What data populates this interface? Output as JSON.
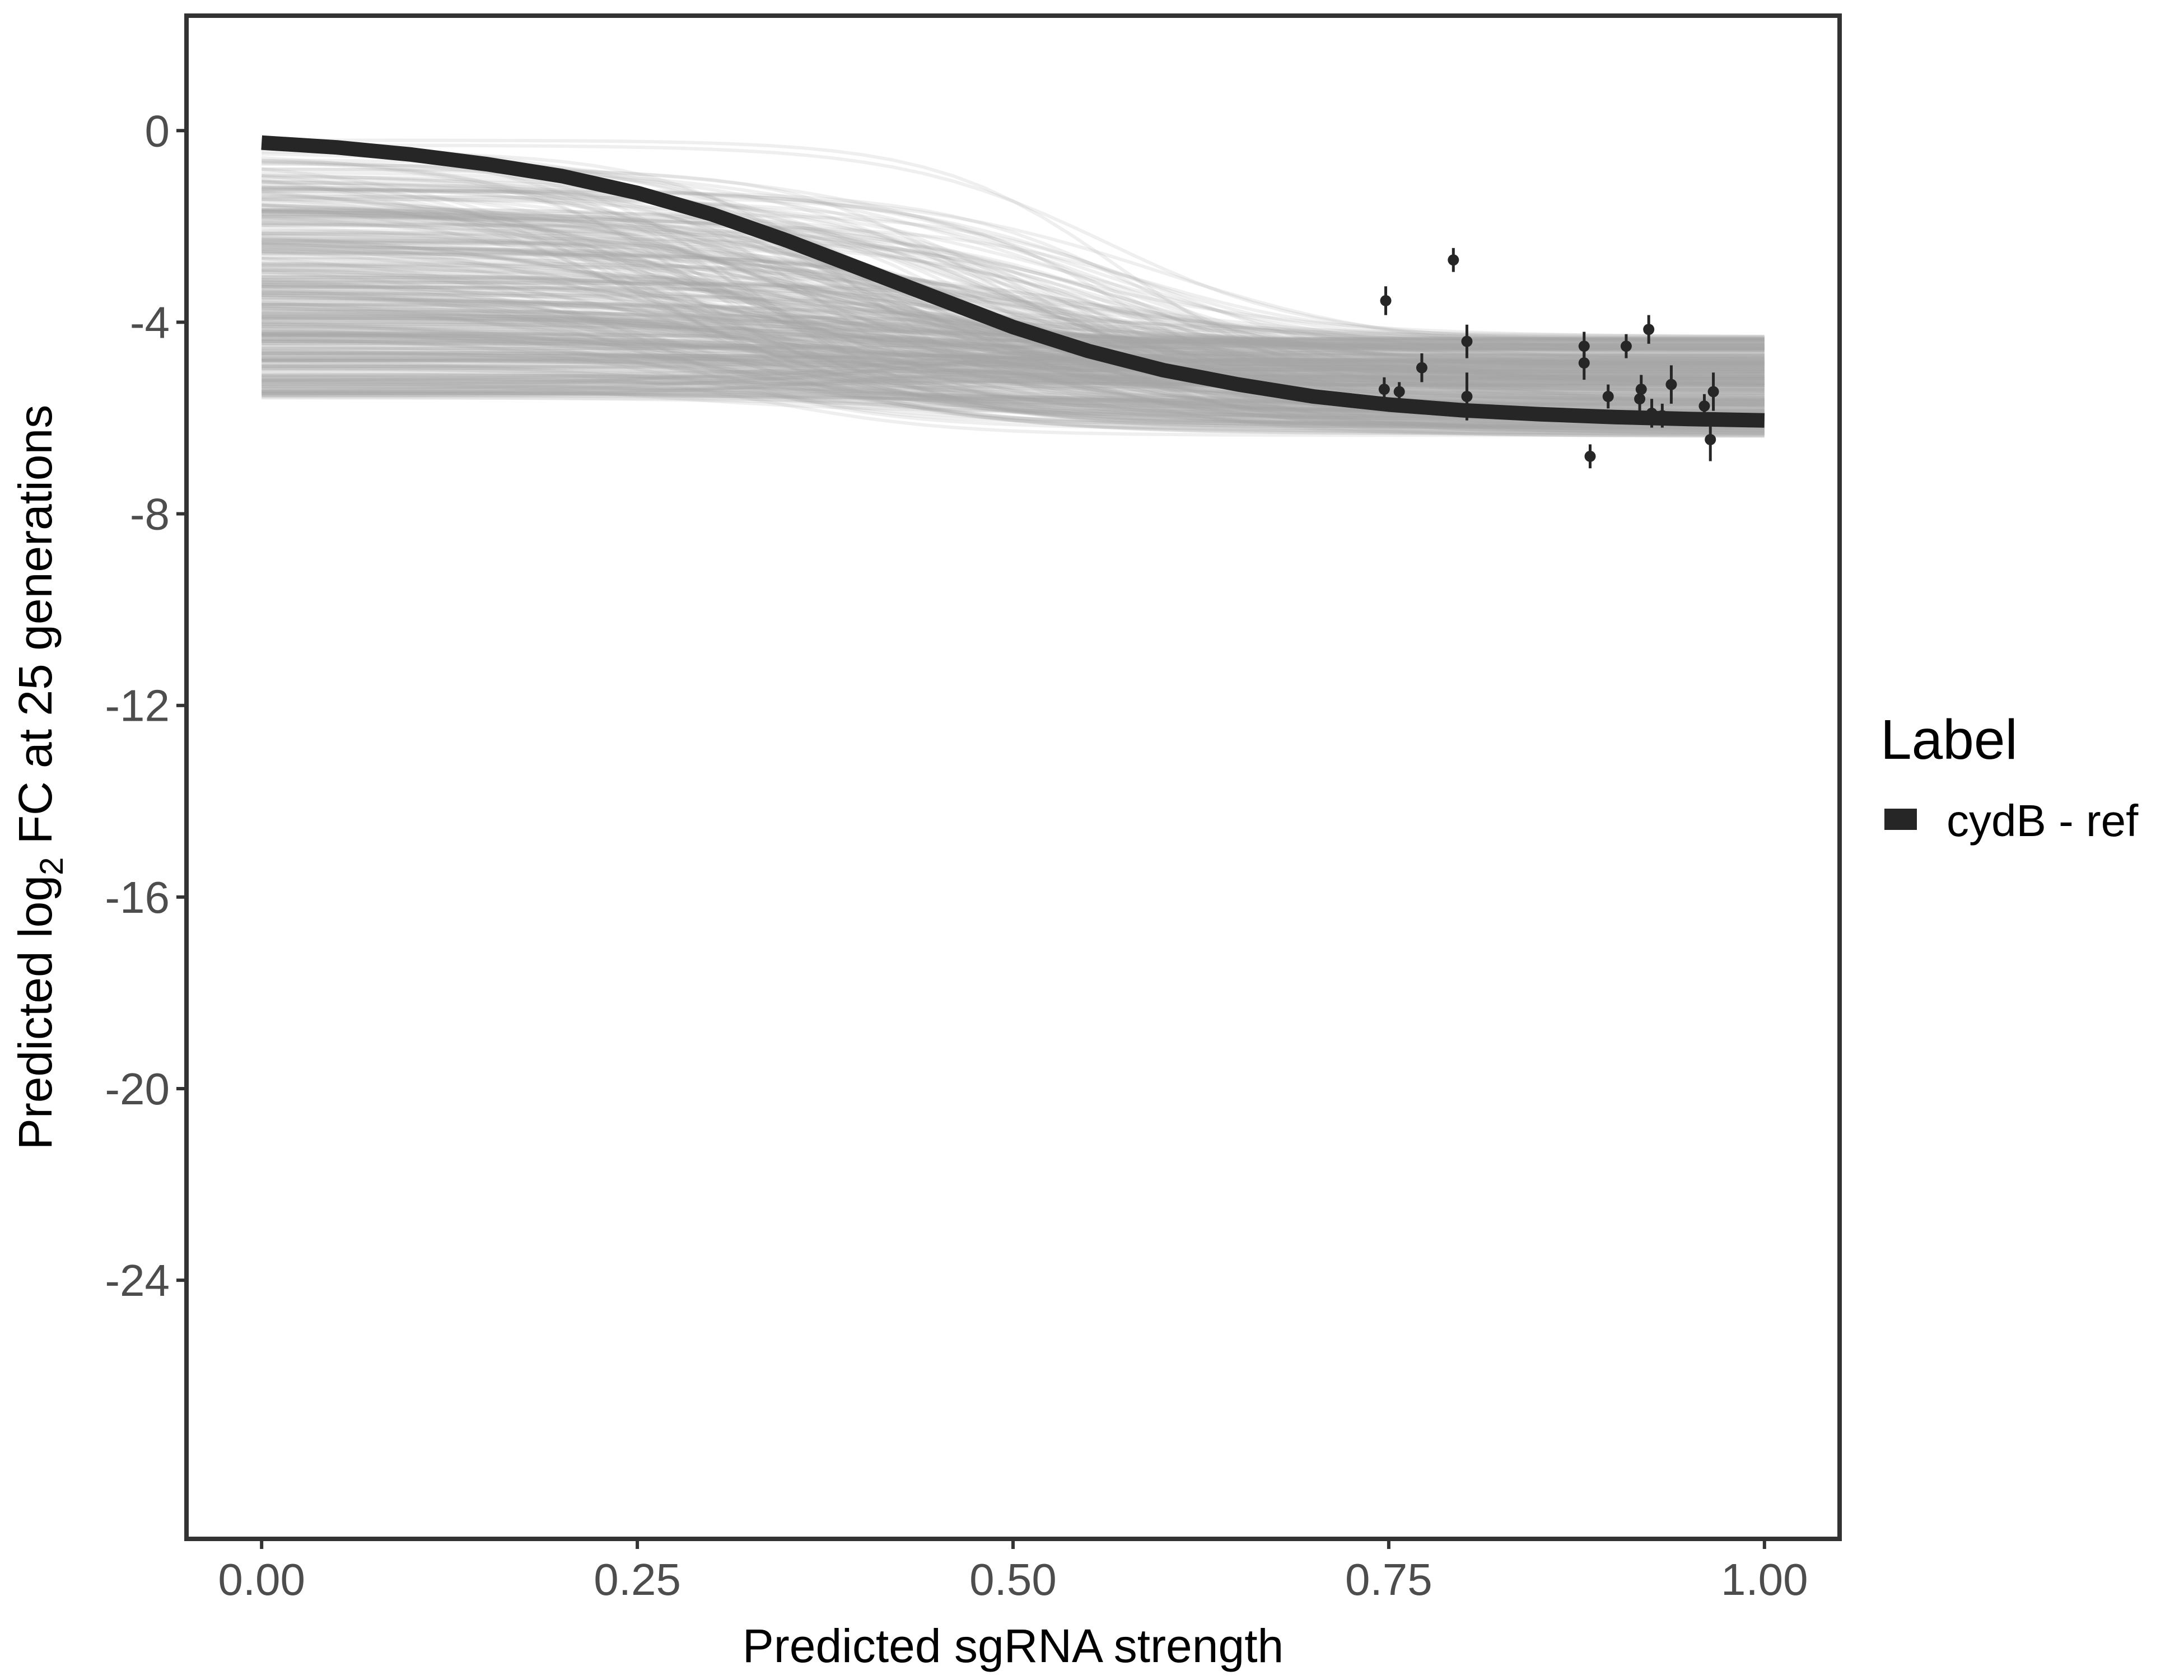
{
  "chart_data": {
    "type": "line",
    "title": "",
    "xlabel": "Predicted sgRNA strength",
    "ylabel": {
      "prefix": "Predicted  log",
      "subscript": "2",
      "suffix": " FC at 25 generations"
    },
    "xlim": [
      -0.05,
      1.05
    ],
    "ylim": [
      -29.4,
      2.4
    ],
    "x_ticks": [
      0.0,
      0.25,
      0.5,
      0.75,
      1.0
    ],
    "x_tick_labels": [
      "0.00",
      "0.25",
      "0.50",
      "0.75",
      "1.00"
    ],
    "y_ticks": [
      0,
      -4,
      -8,
      -12,
      -16,
      -20,
      -24
    ],
    "y_tick_labels": [
      "0",
      "-4",
      "-8",
      "-12",
      "-16",
      "-20",
      "-24"
    ],
    "grid": false,
    "legend": {
      "title": "Label",
      "position": "right",
      "entries": [
        {
          "label": "cydB - ref",
          "color": "#262626"
        }
      ]
    },
    "colors": {
      "fit_line": "#262626",
      "posterior_draws": "#a6a6a6",
      "points": "#262626",
      "frame": "#333333"
    },
    "series": [
      {
        "name": "cydB - ref",
        "kind": "fitted-curve",
        "x": [
          0.0,
          0.05,
          0.1,
          0.15,
          0.2,
          0.25,
          0.3,
          0.35,
          0.4,
          0.45,
          0.5,
          0.55,
          0.6,
          0.65,
          0.7,
          0.75,
          0.8,
          0.85,
          0.9,
          0.95,
          1.0
        ],
        "y": [
          -0.25,
          -0.35,
          -0.5,
          -0.7,
          -0.95,
          -1.3,
          -1.75,
          -2.3,
          -2.9,
          -3.5,
          -4.1,
          -4.6,
          -5.0,
          -5.3,
          -5.55,
          -5.72,
          -5.84,
          -5.92,
          -5.98,
          -6.02,
          -6.05
        ]
      },
      {
        "kind": "posterior-draws",
        "count": 400,
        "upper_level_range": [
          0.0,
          -5.6
        ],
        "lower_level_range": [
          -4.3,
          -6.4
        ],
        "midpoint_range": [
          0.25,
          0.6
        ]
      },
      {
        "kind": "observed-points",
        "points": [
          {
            "x": 0.748,
            "y": -3.55,
            "err": 0.3
          },
          {
            "x": 0.747,
            "y": -5.4,
            "err": 0.25
          },
          {
            "x": 0.757,
            "y": -5.45,
            "err": 0.2
          },
          {
            "x": 0.772,
            "y": -4.95,
            "err": 0.3
          },
          {
            "x": 0.793,
            "y": -2.7,
            "err": 0.25
          },
          {
            "x": 0.802,
            "y": -4.4,
            "err": 0.35
          },
          {
            "x": 0.802,
            "y": -5.55,
            "err": 0.5
          },
          {
            "x": 0.88,
            "y": -4.5,
            "err": 0.3
          },
          {
            "x": 0.88,
            "y": -4.85,
            "err": 0.35
          },
          {
            "x": 0.884,
            "y": -6.8,
            "err": 0.25
          },
          {
            "x": 0.896,
            "y": -5.55,
            "err": 0.25
          },
          {
            "x": 0.908,
            "y": -4.5,
            "err": 0.25
          },
          {
            "x": 0.917,
            "y": -5.6,
            "err": 0.25
          },
          {
            "x": 0.918,
            "y": -5.4,
            "err": 0.3
          },
          {
            "x": 0.923,
            "y": -4.15,
            "err": 0.3
          },
          {
            "x": 0.925,
            "y": -5.9,
            "err": 0.3
          },
          {
            "x": 0.932,
            "y": -5.95,
            "err": 0.25
          },
          {
            "x": 0.938,
            "y": -5.3,
            "err": 0.4
          },
          {
            "x": 0.96,
            "y": -5.75,
            "err": 0.25
          },
          {
            "x": 0.964,
            "y": -6.45,
            "err": 0.45
          },
          {
            "x": 0.966,
            "y": -5.45,
            "err": 0.4
          }
        ]
      }
    ]
  }
}
